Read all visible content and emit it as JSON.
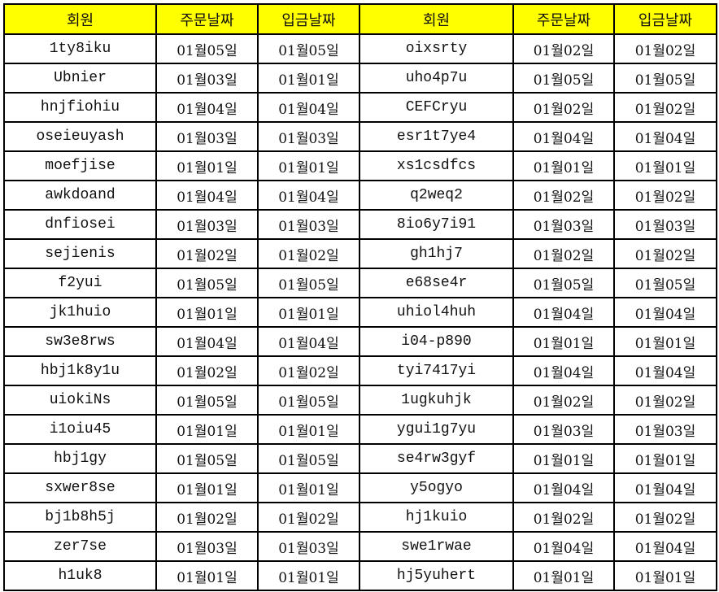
{
  "header_color": "#ffff00",
  "headers": [
    "회원",
    "주문날짜",
    "입금날짜",
    "회원",
    "주문날짜",
    "입금날짜"
  ],
  "rows": [
    [
      "1ty8iku",
      "01월05일",
      "01월05일",
      "oixsrty",
      "01월02일",
      "01월02일"
    ],
    [
      "Ubnier",
      "01월03일",
      "01월01일",
      "uho4p7u",
      "01월05일",
      "01월05일"
    ],
    [
      "hnjfiohiu",
      "01월04일",
      "01월04일",
      "CEFCryu",
      "01월02일",
      "01월02일"
    ],
    [
      "oseieuyash",
      "01월03일",
      "01월03일",
      "esr1t7ye4",
      "01월04일",
      "01월04일"
    ],
    [
      "moefjise",
      "01월01일",
      "01월01일",
      "xs1csdfcs",
      "01월01일",
      "01월01일"
    ],
    [
      "awkdoand",
      "01월04일",
      "01월04일",
      "q2weq2",
      "01월02일",
      "01월02일"
    ],
    [
      "dnfiosei",
      "01월03일",
      "01월03일",
      "8io6y7i91",
      "01월03일",
      "01월03일"
    ],
    [
      "sejienis",
      "01월02일",
      "01월02일",
      "gh1hj7",
      "01월02일",
      "01월02일"
    ],
    [
      "f2yui",
      "01월05일",
      "01월05일",
      "e68se4r",
      "01월05일",
      "01월05일"
    ],
    [
      "jk1huio",
      "01월01일",
      "01월01일",
      "uhiol4huh",
      "01월04일",
      "01월04일"
    ],
    [
      "sw3e8rws",
      "01월04일",
      "01월04일",
      "i04-p890",
      "01월01일",
      "01월01일"
    ],
    [
      "hbj1k8y1u",
      "01월02일",
      "01월02일",
      "tyi7417yi",
      "01월04일",
      "01월04일"
    ],
    [
      "uiokiNs",
      "01월05일",
      "01월05일",
      "1ugkuhjk",
      "01월02일",
      "01월02일"
    ],
    [
      "i1oiu45",
      "01월01일",
      "01월01일",
      "ygui1g7yu",
      "01월03일",
      "01월03일"
    ],
    [
      "hbj1gy",
      "01월05일",
      "01월05일",
      "se4rw3gyf",
      "01월01일",
      "01월01일"
    ],
    [
      "sxwer8se",
      "01월01일",
      "01월01일",
      "y5ogyo",
      "01월04일",
      "01월04일"
    ],
    [
      "bj1b8h5j",
      "01월02일",
      "01월02일",
      "hj1kuio",
      "01월02일",
      "01월02일"
    ],
    [
      "zer7se",
      "01월03일",
      "01월03일",
      "swe1rwae",
      "01월04일",
      "01월04일"
    ],
    [
      "h1uk8",
      "01월01일",
      "01월01일",
      "hj5yuhert",
      "01월01일",
      "01월01일"
    ]
  ]
}
